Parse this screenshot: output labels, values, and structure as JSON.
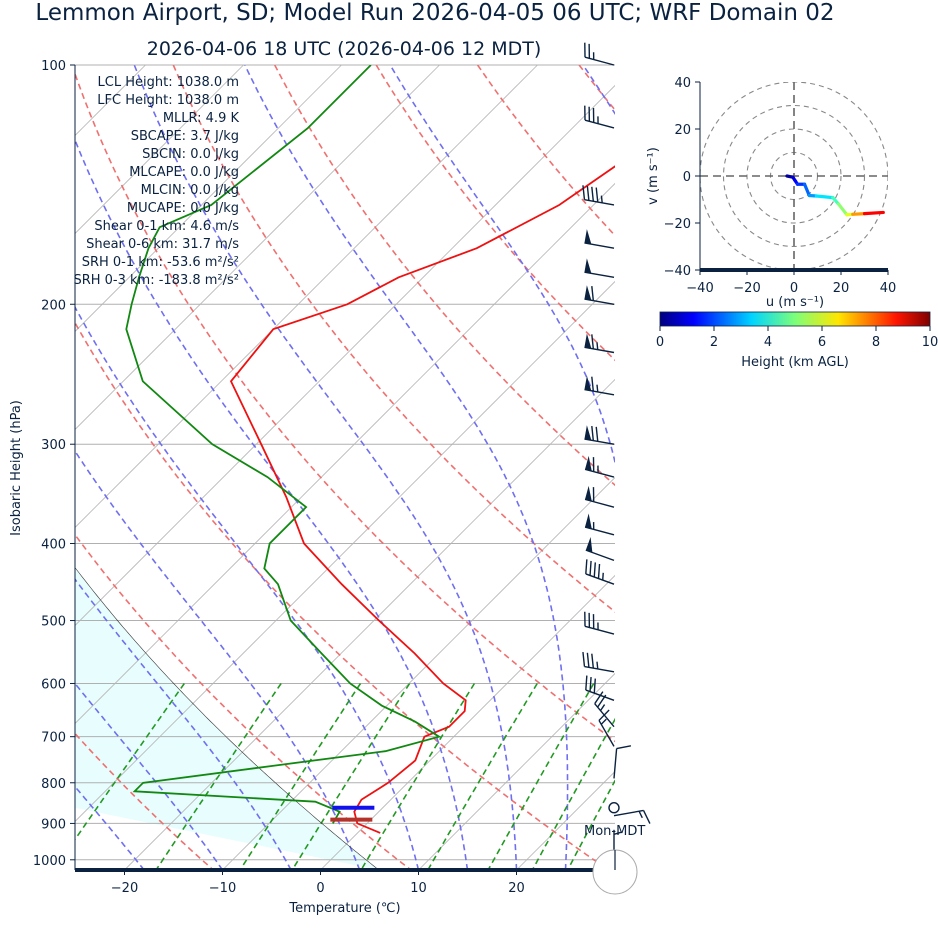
{
  "title": "Lemmon Airport, SD; Model Run 2026-04-05 06 UTC; WRF Domain 02",
  "subtitle": "2026-04-06 18 UTC  (2026-04-06 12 MDT)",
  "stats": [
    "LCL Height: 1038.0 m",
    "LFC Height: 1038.0 m",
    "MLLR: 4.9 K",
    "SBCAPE: 3.7 J/kg",
    "SBCIN: 0.0 J/kg",
    "MLCAPE: 0.0 J/kg",
    "MLCIN: 0.0 J/kg",
    "MUCAPE: 0.0 J/kg",
    "Shear 0-1 km: 4.6 m/s",
    "Shear 0-6 km: 31.7 m/s",
    "SRH 0-1 km: -53.6 m²/s²",
    "SRH 0-3 km: -183.8 m²/s²"
  ],
  "storm_motion_label": "Mon-MDT",
  "colors": {
    "text": "#0a2240",
    "temperature": "#ee1111",
    "dewpoint": "#118811",
    "dry_adiabat": "#f07070",
    "moist_adiabat": "#6f6ff0",
    "mixing_ratio": "#229922",
    "cape_shade": "#e8fdfd",
    "barb": "#0a2240"
  },
  "chart_data": [
    {
      "type": "line",
      "name": "skew-t",
      "xlabel": "Temperature (℃)",
      "ylabel": "Isobaric Height (hPa)",
      "x_ticks": [
        -20,
        -10,
        0,
        10,
        20
      ],
      "y_ticks": [
        100,
        200,
        300,
        400,
        500,
        600,
        700,
        800,
        900,
        1000
      ],
      "xlim": [
        -25,
        30
      ],
      "ylim": [
        1030,
        100
      ],
      "log_pressure": true,
      "skew": "45deg",
      "series": [
        {
          "key": "temperature",
          "p": [
            100,
            120,
            150,
            170,
            185,
            200,
            215,
            250,
            300,
            350,
            400,
            450,
            500,
            550,
            600,
            630,
            650,
            680,
            700,
            750,
            800,
            840,
            870,
            900,
            925
          ],
          "t": [
            -37.5,
            -40,
            -43.5,
            -47.5,
            -52.5,
            -55,
            -60,
            -59,
            -49.5,
            -41.5,
            -35,
            -27,
            -19.5,
            -12.5,
            -6.5,
            -2.5,
            -1.5,
            -1.5,
            -3,
            -1.5,
            -2,
            -3,
            -2.5,
            -1,
            2.3
          ]
        },
        {
          "key": "dewpoint",
          "p": [
            100,
            120,
            150,
            160,
            170,
            185,
            200,
            215,
            250,
            300,
            330,
            360,
            400,
            430,
            450,
            500,
            550,
            600,
            640,
            670,
            700,
            730,
            760,
            800,
            820,
            845,
            870,
            900
          ],
          "td": [
            -77,
            -77,
            -79,
            -82,
            -81,
            -79,
            -77,
            -75,
            -68,
            -54.5,
            -45.5,
            -38.5,
            -38.5,
            -36.5,
            -33.5,
            -28.5,
            -22,
            -16,
            -10.5,
            -5.5,
            -1.5,
            -5.5,
            -15,
            -27,
            -27,
            -7.5,
            -4,
            -3.5
          ]
        }
      ],
      "parcel_markers": [
        {
          "name": "LCL",
          "p": 860,
          "t": -3.0,
          "color": "#1111ee"
        },
        {
          "name": "LFC",
          "p": 890,
          "t": -2.0,
          "color": "#b5322a"
        }
      ],
      "wind_barbs": {
        "p": [
          100,
          120,
          150,
          170,
          185,
          200,
          230,
          260,
          300,
          330,
          360,
          390,
          420,
          450,
          520,
          580,
          630,
          680,
          720,
          790,
          860,
          880,
          1000
        ],
        "speed_kt": [
          25,
          35,
          45,
          50,
          50,
          60,
          65,
          65,
          70,
          65,
          60,
          55,
          50,
          45,
          35,
          35,
          30,
          25,
          15,
          10,
          0,
          15,
          5
        ],
        "direction_deg": [
          285,
          285,
          280,
          280,
          280,
          280,
          280,
          280,
          280,
          285,
          285,
          285,
          290,
          290,
          285,
          280,
          290,
          320,
          330,
          5,
          0,
          80,
          360
        ]
      }
    },
    {
      "type": "line",
      "name": "hodograph",
      "xlabel": "u (m s⁻¹)",
      "ylabel": "v (m s⁻¹)",
      "xlim": [
        -40,
        40
      ],
      "ylim": [
        -40,
        40
      ],
      "x_ticks": [
        -40,
        -20,
        0,
        20,
        40
      ],
      "y_ticks": [
        -40,
        -20,
        0,
        20,
        40
      ],
      "rings": [
        10,
        20,
        30,
        40
      ],
      "u": [
        -3,
        -0.5,
        0.5,
        1.5,
        4.5,
        6.5,
        9.5,
        16.5,
        19,
        22.5,
        25,
        30,
        38
      ],
      "v": [
        0,
        -0.5,
        -2,
        -3.5,
        -3.5,
        -8.3,
        -8.5,
        -9.2,
        -12,
        -16.5,
        -16.3,
        -16,
        -15.5
      ],
      "height_km": [
        0,
        0.5,
        1,
        1.5,
        2,
        2.5,
        3,
        4,
        4.8,
        5.5,
        6.5,
        8,
        9.5
      ]
    },
    {
      "type": "heatmap",
      "name": "colorbar",
      "xlabel": "Height (km AGL)",
      "xlim": [
        0,
        10
      ],
      "x_ticks": [
        0,
        2,
        4,
        6,
        8,
        10
      ],
      "colormap": "jet"
    }
  ]
}
